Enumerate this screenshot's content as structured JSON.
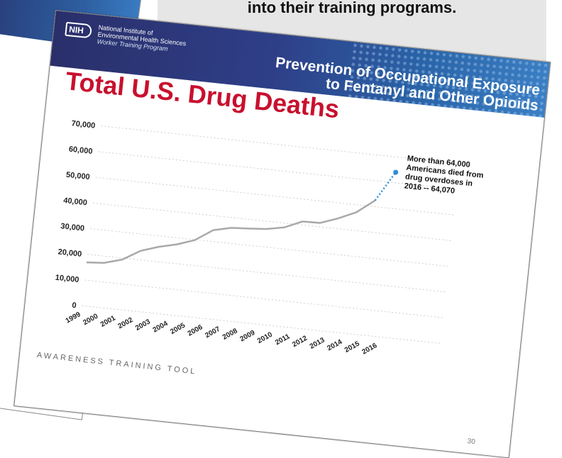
{
  "background_text": {
    "line": "into their training programs."
  },
  "slide": {
    "org_logo": "NIH",
    "org_lines": [
      "National Institute of",
      "Environmental Health Sciences",
      "Worker Training Program"
    ],
    "banner_title_lines": [
      "Prevention of Occupational Exposure",
      "to Fentanyl and Other Opioids"
    ],
    "title": "Total U.S. Drug Deaths",
    "footer": "AWARENESS TRAINING TOOL",
    "page_number": "30"
  },
  "chart_data": {
    "type": "line",
    "title": "Total U.S. Drug Deaths",
    "xlabel": "",
    "ylabel": "",
    "categories": [
      "1999",
      "2000",
      "2001",
      "2002",
      "2003",
      "2004",
      "2005",
      "2006",
      "2007",
      "2008",
      "2009",
      "2010",
      "2011",
      "2012",
      "2013",
      "2014",
      "2015",
      "2016"
    ],
    "y_ticks": [
      "0",
      "10,000",
      "20,000",
      "30,000",
      "40,000",
      "50,000",
      "60,000",
      "70,000"
    ],
    "ylim": [
      0,
      70000
    ],
    "grid": true,
    "series": [
      {
        "values": [
          16849,
          17415,
          19394,
          23518,
          25785,
          27424,
          29813,
          34425,
          36010,
          36450,
          37004,
          38329,
          41340,
          41502,
          43982,
          47055,
          52404,
          null
        ]
      },
      {
        "values": [
          null,
          null,
          null,
          null,
          null,
          null,
          null,
          null,
          null,
          null,
          null,
          null,
          null,
          null,
          null,
          null,
          52404,
          64070
        ],
        "style": "dotted"
      }
    ],
    "annotation": {
      "lines": [
        "More than 64,000",
        "Americans died from",
        "drug overdoses in",
        "2016 -- 64,070"
      ],
      "year": "2016",
      "value": 64070
    },
    "colors": {
      "line": "#a9a9a9",
      "projection": "#2a8fd6",
      "grid": "#cfcfcf"
    }
  }
}
